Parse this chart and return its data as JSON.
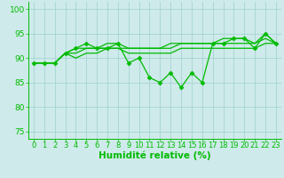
{
  "x": [
    0,
    1,
    2,
    3,
    4,
    5,
    6,
    7,
    8,
    9,
    10,
    11,
    12,
    13,
    14,
    15,
    16,
    17,
    18,
    19,
    20,
    21,
    22,
    23
  ],
  "y_main": [
    89,
    89,
    89,
    91,
    92,
    93,
    92,
    92,
    93,
    89,
    90,
    86,
    85,
    87,
    84,
    87,
    85,
    93,
    93,
    94,
    94,
    92,
    95,
    93
  ],
  "y_trend1": [
    89,
    89,
    89,
    91,
    90,
    91,
    91,
    92,
    92,
    91,
    91,
    91,
    91,
    91,
    92,
    92,
    92,
    92,
    92,
    92,
    92,
    92,
    93,
    93
  ],
  "y_trend2": [
    89,
    89,
    89,
    91,
    91,
    92,
    92,
    92,
    92,
    92,
    92,
    92,
    92,
    92,
    93,
    93,
    93,
    93,
    93,
    93,
    93,
    93,
    94,
    93
  ],
  "y_trend3": [
    89,
    89,
    89,
    91,
    92,
    92,
    92,
    93,
    93,
    92,
    92,
    92,
    92,
    93,
    93,
    93,
    93,
    93,
    94,
    94,
    94,
    93,
    95,
    93
  ],
  "bg_color": "#ceeaea",
  "grid_color": "#9fcfcf",
  "line_color": "#00bb00",
  "marker": "D",
  "marker_size": 2.5,
  "ylim": [
    73.5,
    101.5
  ],
  "yticks": [
    75,
    80,
    85,
    90,
    95,
    100
  ],
  "xlim": [
    -0.5,
    23.5
  ],
  "xlabel": "Humidité relative (%)",
  "xlabel_fontsize": 7.5,
  "tick_fontsize": 6.5,
  "linewidth": 0.9
}
